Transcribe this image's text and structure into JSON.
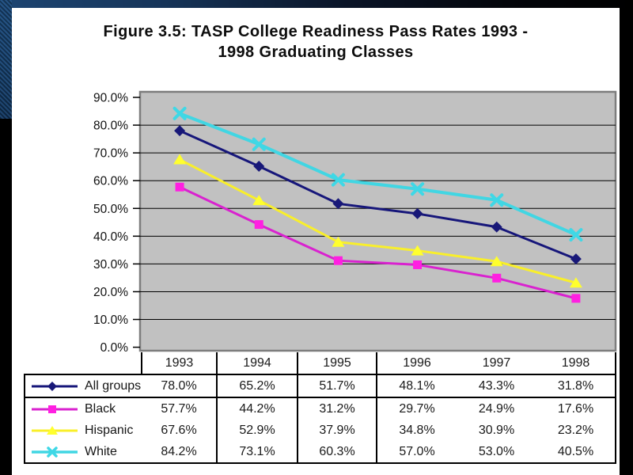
{
  "slide": {
    "title_lines": [
      "Figure 3.5: TASP College Readiness Pass Rates 1993 -",
      "1998 Graduating Classes"
    ]
  },
  "chart_data": {
    "type": "line",
    "title": "Figure 3.5: TASP College Readiness Pass Rates 1993 - 1998 Graduating Classes",
    "categories": [
      "1993",
      "1994",
      "1995",
      "1996",
      "1997",
      "1998"
    ],
    "series": [
      {
        "name": "All groups",
        "marker": "diamond",
        "color": "#16167a",
        "marker_color": "#181878",
        "values": [
          78.0,
          65.2,
          51.7,
          48.1,
          43.3,
          31.8
        ],
        "value_labels": [
          "78.0%",
          "65.2%",
          "51.7%",
          "48.1%",
          "43.3%",
          "31.8%"
        ]
      },
      {
        "name": "Black",
        "marker": "square",
        "color": "#d922cf",
        "marker_color": "#ff1fe1",
        "values": [
          57.7,
          44.2,
          31.2,
          29.7,
          24.9,
          17.6
        ],
        "value_labels": [
          "57.7%",
          "44.2%",
          "31.2%",
          "29.7%",
          "24.9%",
          "17.6%"
        ]
      },
      {
        "name": "Hispanic",
        "marker": "triangle",
        "color": "#f9ef2a",
        "marker_color": "#ffff2e",
        "values": [
          67.6,
          52.9,
          37.9,
          34.8,
          30.9,
          23.2
        ],
        "value_labels": [
          "67.6%",
          "52.9%",
          "37.9%",
          "34.8%",
          "30.9%",
          "23.2%"
        ]
      },
      {
        "name": "White",
        "marker": "x",
        "color": "#41d6e3",
        "marker_color": "#3fd8e6",
        "values": [
          84.2,
          73.1,
          60.3,
          57.0,
          53.0,
          40.5
        ],
        "value_labels": [
          "84.2%",
          "73.1%",
          "60.3%",
          "57.0%",
          "53.0%",
          "40.5%"
        ]
      }
    ],
    "y_ticks": [
      {
        "value": 90,
        "label": "90.0%"
      },
      {
        "value": 80,
        "label": "80.0%"
      },
      {
        "value": 70,
        "label": "70.0%"
      },
      {
        "value": 60,
        "label": "60.0%"
      },
      {
        "value": 50,
        "label": "50.0%"
      },
      {
        "value": 40,
        "label": "40.0%"
      },
      {
        "value": 30,
        "label": "30.0%"
      },
      {
        "value": 20,
        "label": "20.0%"
      },
      {
        "value": 10,
        "label": "10.0%"
      },
      {
        "value": 0,
        "label": "0.0%"
      }
    ],
    "ylim": [
      0,
      90
    ],
    "grid": true,
    "plot_bg": "#c1c1c1",
    "plot_border": "#7d7d7d",
    "legend_position": "data-table-left"
  }
}
